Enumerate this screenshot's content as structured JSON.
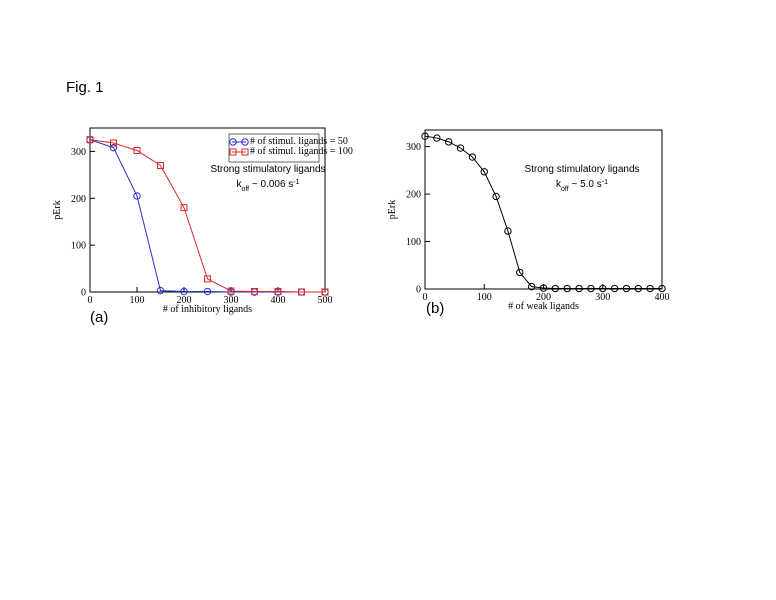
{
  "fig_label": "Fig. 1",
  "chart_data": [
    {
      "type": "line",
      "panel_label": "(a)",
      "xlabel": "# of inhibitory ligands",
      "ylabel": "pErk",
      "x": [
        0,
        50,
        100,
        150,
        200,
        250,
        300,
        350,
        400,
        450,
        500
      ],
      "series": [
        {
          "name": "# of stimul. ligands = 50",
          "color": "#2b2bd0",
          "marker": "circle",
          "values": [
            325,
            308,
            205,
            3,
            1,
            1,
            0,
            0,
            0,
            0,
            0
          ]
        },
        {
          "name": "# of stimul. ligands = 100",
          "color": "#d42a2a",
          "marker": "square",
          "values": [
            325,
            318,
            302,
            270,
            180,
            28,
            2,
            1,
            1,
            0,
            0
          ]
        }
      ],
      "xlim": [
        0,
        500
      ],
      "xticks": [
        0,
        100,
        200,
        300,
        400,
        500
      ],
      "ylim": [
        0,
        350
      ],
      "yticks": [
        0,
        100,
        200,
        300
      ],
      "legend": "upper right",
      "annotation": "Strong stimulatory ligands",
      "rate_label": {
        "base": "k",
        "sub": "off",
        "value": " ~ 0.006 s",
        "sup": "-1"
      }
    },
    {
      "type": "line",
      "panel_label": "(b)",
      "xlabel": "# of weak ligands",
      "ylabel": "pErk",
      "x": [
        0,
        20,
        40,
        60,
        80,
        100,
        120,
        140,
        160,
        180,
        200,
        220,
        240,
        260,
        280,
        300,
        320,
        340,
        360,
        380,
        400
      ],
      "series": [
        {
          "color": "#000000",
          "marker": "circle",
          "values": [
            322,
            318,
            310,
            297,
            278,
            247,
            195,
            122,
            35,
            5,
            2,
            1,
            1,
            1,
            1,
            1,
            1,
            1,
            1,
            1,
            1
          ]
        }
      ],
      "xlim": [
        0,
        400
      ],
      "xticks": [
        0,
        100,
        200,
        300,
        400
      ],
      "ylim": [
        0,
        335
      ],
      "yticks": [
        0,
        100,
        200,
        300
      ],
      "annotation": "Strong stimulatory ligands",
      "rate_label": {
        "base": "k",
        "sub": "off",
        "value": " ~ 5.0 s",
        "sup": "-1"
      }
    }
  ]
}
